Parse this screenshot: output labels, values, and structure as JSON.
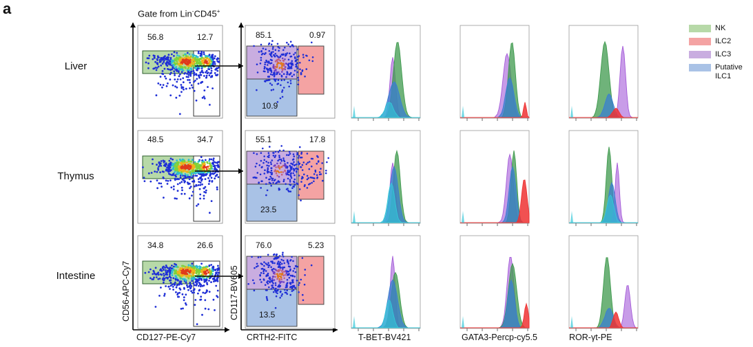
{
  "panel_letter": "a",
  "gate_title_prefix": "Gate from Lin",
  "gate_title_sup1": "-",
  "gate_title_mid": "CD45",
  "gate_title_sup2": "+",
  "rows": [
    {
      "label": "Liver",
      "p1_tl": "56.8",
      "p1_tr": "12.7",
      "p2_tl": "85.1",
      "p2_tr": "0.97",
      "p2_bl": "10.9"
    },
    {
      "label": "Thymus",
      "p1_tl": "48.5",
      "p1_tr": "34.7",
      "p2_tl": "55.1",
      "p2_tr": "17.8",
      "p2_bl": "23.5"
    },
    {
      "label": "Intestine",
      "p1_tl": "34.8",
      "p1_tr": "26.6",
      "p2_tl": "76.0",
      "p2_tr": "5.23",
      "p2_bl": "13.5"
    }
  ],
  "axes": {
    "flow1_x": "CD127-PE-Cy7",
    "flow1_y": "CD56-APC-Cy7",
    "flow2_x": "CRTH2-FITC",
    "flow2_y": "CD117-BV605",
    "hist1_x": "T-BET-BV421",
    "hist2_x": "GATA3-Percp-cy5.5",
    "hist3_x": "ROR-γt-PE"
  },
  "legend": [
    {
      "label": "NK",
      "color": "#b7d9a8"
    },
    {
      "label": "ILC2",
      "color": "#f4a3a3"
    },
    {
      "label": "ILC3",
      "color": "#c9ade0"
    },
    {
      "label": "Putative ILC1",
      "color": "#a9c2e6"
    }
  ],
  "colors": {
    "nk": "#3f9a4e",
    "ilc2": "#ee3333",
    "ilc3": "#a45ad8",
    "ilc1": "#3a7fd0",
    "cyan": "#33c8d8",
    "gate_green": "#b7d9a8",
    "gate_red": "#f4a3a3",
    "gate_purple": "#c9ade0",
    "gate_blue": "#a9c2e6",
    "dots": "#1f2fd6"
  },
  "chart_data": [
    {
      "type": "histogram",
      "name": "T-BET-BV421",
      "tissues": [
        "Liver",
        "Thymus",
        "Intestine"
      ],
      "series": [
        {
          "name": "NK"
        },
        {
          "name": "ILC2"
        },
        {
          "name": "ILC3"
        },
        {
          "name": "Putative ILC1"
        }
      ]
    },
    {
      "type": "histogram",
      "name": "GATA3-Percp-cy5.5",
      "tissues": [
        "Liver",
        "Thymus",
        "Intestine"
      ],
      "series": [
        {
          "name": "NK"
        },
        {
          "name": "ILC2"
        },
        {
          "name": "ILC3"
        },
        {
          "name": "Putative ILC1"
        }
      ]
    },
    {
      "type": "histogram",
      "name": "ROR-γt-PE",
      "tissues": [
        "Liver",
        "Thymus",
        "Intestine"
      ],
      "series": [
        {
          "name": "NK"
        },
        {
          "name": "ILC2"
        },
        {
          "name": "ILC3"
        },
        {
          "name": "Putative ILC1"
        }
      ]
    }
  ]
}
